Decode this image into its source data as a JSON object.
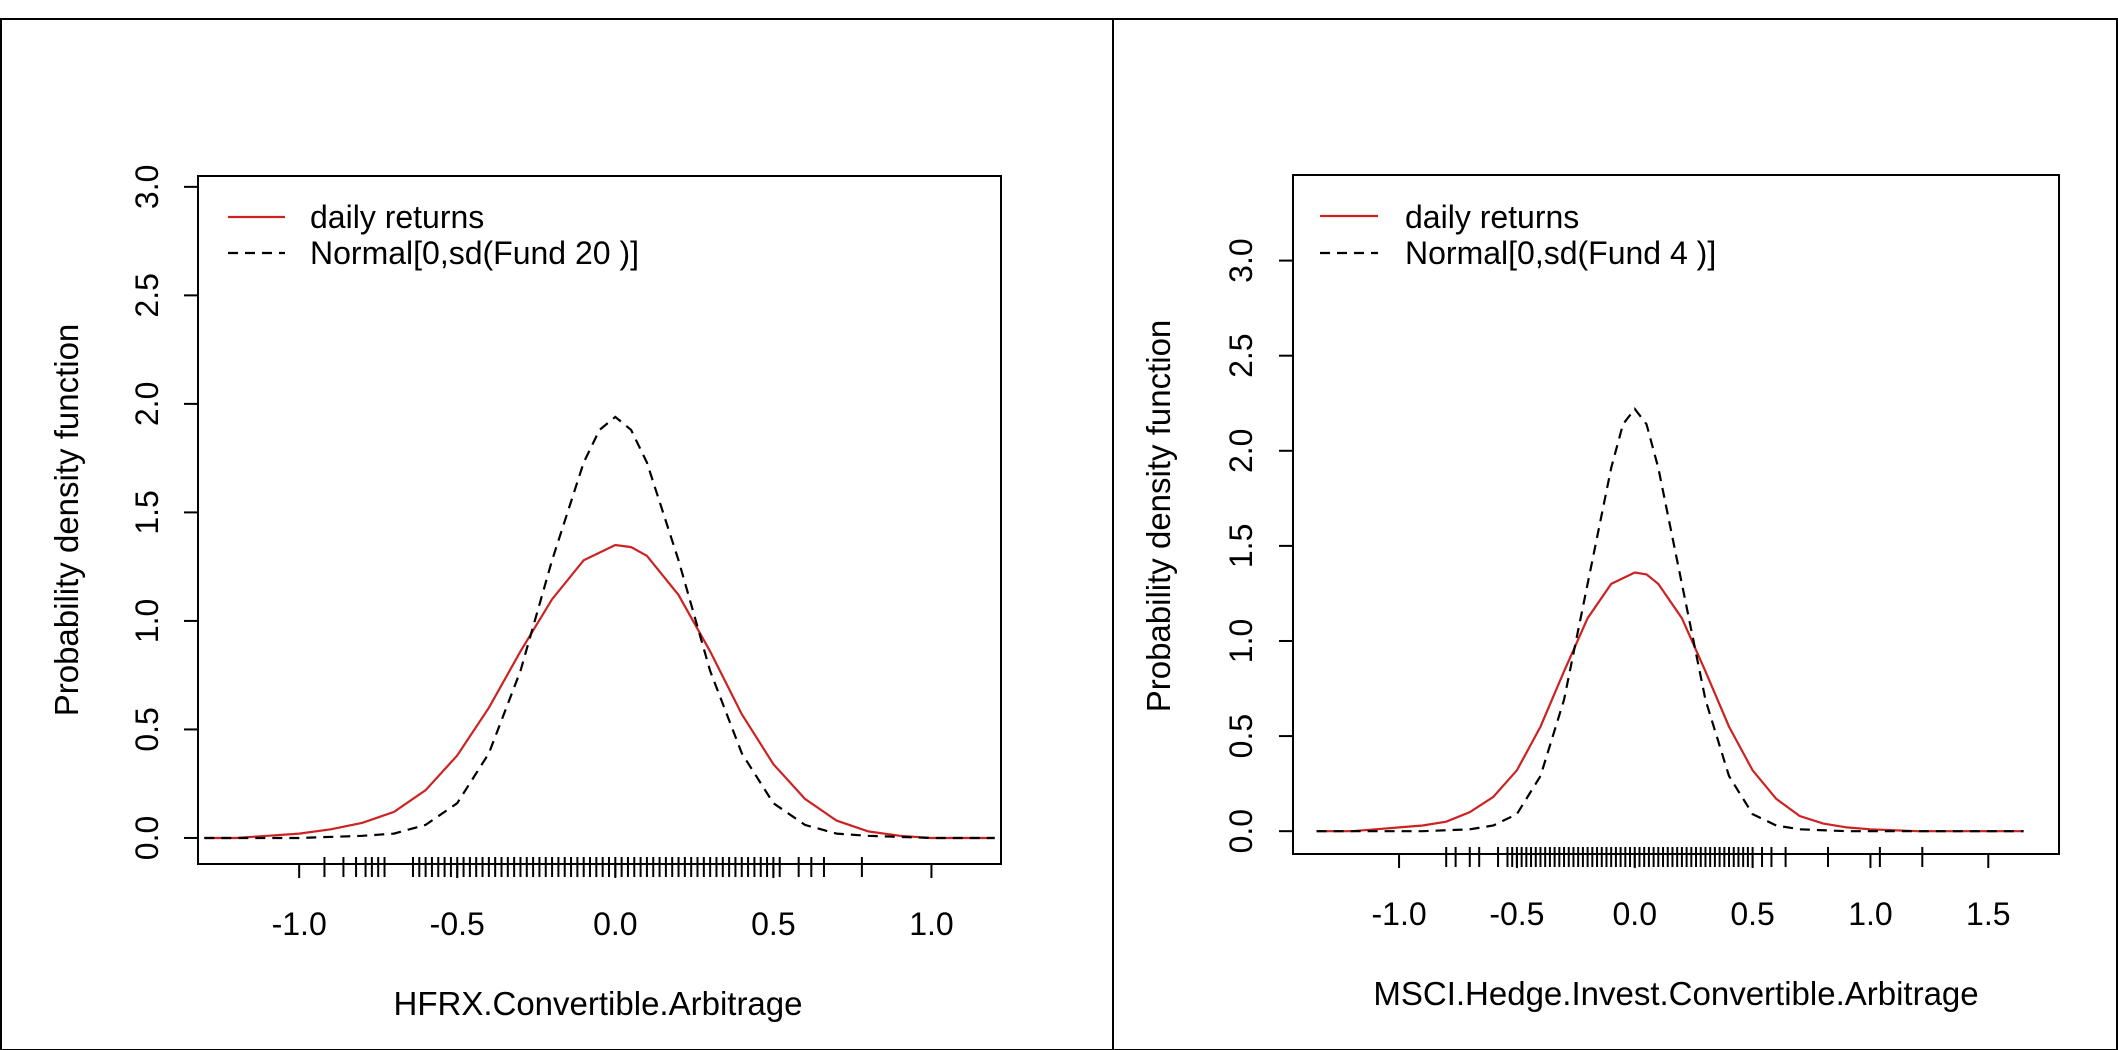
{
  "chart_data": [
    {
      "type": "line",
      "title": "",
      "xlabel": "HFRX.Convertible.Arbitrage",
      "ylabel": "Probability density function",
      "xlim": [
        -1.32,
        1.22
      ],
      "ylim": [
        -0.12,
        3.05
      ],
      "xticks": [
        -1.0,
        -0.5,
        0.0,
        0.5,
        1.0
      ],
      "xtick_labels": [
        "-1.0",
        "-0.5",
        "0.0",
        "0.5",
        "1.0"
      ],
      "yticks": [
        0.0,
        0.5,
        1.0,
        1.5,
        2.0,
        2.5,
        3.0
      ],
      "ytick_labels": [
        "0.0",
        "0.5",
        "1.0",
        "1.5",
        "2.0",
        "2.5",
        "3.0"
      ],
      "legend_position": "top-left",
      "series": [
        {
          "name": "daily returns",
          "style": "solid",
          "color": "#cc2222",
          "x": [
            -1.3,
            -1.2,
            -1.1,
            -1.0,
            -0.9,
            -0.8,
            -0.7,
            -0.6,
            -0.5,
            -0.4,
            -0.3,
            -0.2,
            -0.1,
            0.0,
            0.05,
            0.1,
            0.2,
            0.3,
            0.4,
            0.5,
            0.6,
            0.7,
            0.8,
            0.9,
            1.0,
            1.1,
            1.2
          ],
          "y": [
            0.0,
            0.0,
            0.01,
            0.02,
            0.04,
            0.07,
            0.12,
            0.22,
            0.38,
            0.6,
            0.86,
            1.1,
            1.28,
            1.35,
            1.34,
            1.3,
            1.12,
            0.86,
            0.57,
            0.34,
            0.18,
            0.08,
            0.03,
            0.01,
            0.0,
            0.0,
            0.0
          ]
        },
        {
          "name": "Normal[0,sd(Fund 20 )]",
          "style": "dashed",
          "color": "#000000",
          "x": [
            -1.3,
            -1.0,
            -0.8,
            -0.7,
            -0.6,
            -0.5,
            -0.4,
            -0.3,
            -0.2,
            -0.1,
            -0.05,
            0.0,
            0.05,
            0.1,
            0.2,
            0.3,
            0.4,
            0.5,
            0.6,
            0.7,
            0.8,
            1.0,
            1.2
          ],
          "y": [
            0.0,
            0.0,
            0.01,
            0.02,
            0.06,
            0.16,
            0.39,
            0.77,
            1.28,
            1.73,
            1.88,
            1.94,
            1.88,
            1.73,
            1.28,
            0.77,
            0.39,
            0.16,
            0.06,
            0.02,
            0.01,
            0.0,
            0.0
          ]
        }
      ],
      "rug": [
        -0.92,
        -0.86,
        -0.82,
        -0.79,
        -0.77,
        -0.75,
        -0.73,
        -0.64,
        -0.62,
        -0.6,
        -0.58,
        -0.56,
        -0.54,
        -0.52,
        -0.5,
        -0.48,
        -0.46,
        -0.44,
        -0.42,
        -0.4,
        -0.38,
        -0.36,
        -0.34,
        -0.32,
        -0.3,
        -0.28,
        -0.26,
        -0.24,
        -0.22,
        -0.2,
        -0.18,
        -0.16,
        -0.14,
        -0.12,
        -0.1,
        -0.08,
        -0.06,
        -0.04,
        -0.02,
        0.0,
        0.02,
        0.04,
        0.06,
        0.08,
        0.1,
        0.12,
        0.14,
        0.16,
        0.18,
        0.2,
        0.22,
        0.24,
        0.26,
        0.28,
        0.3,
        0.32,
        0.34,
        0.36,
        0.38,
        0.4,
        0.42,
        0.44,
        0.46,
        0.48,
        0.5,
        0.52,
        0.58,
        0.62,
        0.66,
        0.78
      ]
    },
    {
      "type": "line",
      "title": "",
      "xlabel": "MSCI.Hedge.Invest.Convertible.Arbitrage",
      "ylabel": "Probability density function",
      "xlim": [
        -1.45,
        1.8
      ],
      "ylim": [
        -0.12,
        3.45
      ],
      "xticks": [
        -1.0,
        -0.5,
        0.0,
        0.5,
        1.0,
        1.5
      ],
      "xtick_labels": [
        "-1.0",
        "-0.5",
        "0.0",
        "0.5",
        "1.0",
        "1.5"
      ],
      "yticks": [
        0.0,
        0.5,
        1.0,
        1.5,
        2.0,
        2.5,
        3.0
      ],
      "ytick_labels": [
        "0.0",
        "0.5",
        "1.0",
        "1.5",
        "2.0",
        "2.5",
        "3.0"
      ],
      "legend_position": "top-left",
      "series": [
        {
          "name": "daily returns",
          "style": "solid",
          "color": "#cc2222",
          "x": [
            -1.35,
            -1.2,
            -1.1,
            -1.0,
            -0.9,
            -0.8,
            -0.7,
            -0.6,
            -0.5,
            -0.4,
            -0.3,
            -0.2,
            -0.1,
            0.0,
            0.05,
            0.1,
            0.2,
            0.3,
            0.4,
            0.5,
            0.6,
            0.7,
            0.8,
            0.9,
            1.0,
            1.2,
            1.4,
            1.65
          ],
          "y": [
            0.0,
            0.0,
            0.01,
            0.02,
            0.03,
            0.05,
            0.1,
            0.18,
            0.32,
            0.55,
            0.84,
            1.12,
            1.3,
            1.36,
            1.35,
            1.3,
            1.12,
            0.84,
            0.55,
            0.32,
            0.17,
            0.08,
            0.04,
            0.02,
            0.01,
            0.0,
            0.0,
            0.0
          ]
        },
        {
          "name": "Normal[0,sd(Fund 4 )]",
          "style": "dashed",
          "color": "#000000",
          "x": [
            -1.35,
            -0.9,
            -0.7,
            -0.6,
            -0.5,
            -0.4,
            -0.3,
            -0.2,
            -0.1,
            -0.05,
            0.0,
            0.05,
            0.1,
            0.2,
            0.3,
            0.4,
            0.5,
            0.6,
            0.7,
            0.9,
            1.2,
            1.65
          ],
          "y": [
            0.0,
            0.0,
            0.01,
            0.03,
            0.09,
            0.29,
            0.69,
            1.3,
            1.91,
            2.14,
            2.22,
            2.14,
            1.91,
            1.3,
            0.69,
            0.29,
            0.09,
            0.03,
            0.01,
            0.0,
            0.0,
            0.0
          ]
        }
      ],
      "rug": [
        -0.8,
        -0.76,
        -0.7,
        -0.66,
        -0.58,
        -0.54,
        -0.52,
        -0.5,
        -0.48,
        -0.46,
        -0.44,
        -0.42,
        -0.4,
        -0.38,
        -0.36,
        -0.34,
        -0.32,
        -0.3,
        -0.28,
        -0.26,
        -0.24,
        -0.22,
        -0.2,
        -0.18,
        -0.16,
        -0.14,
        -0.12,
        -0.1,
        -0.08,
        -0.06,
        -0.04,
        -0.02,
        0.0,
        0.02,
        0.04,
        0.06,
        0.08,
        0.1,
        0.12,
        0.14,
        0.16,
        0.18,
        0.2,
        0.22,
        0.24,
        0.26,
        0.28,
        0.3,
        0.32,
        0.34,
        0.36,
        0.38,
        0.4,
        0.42,
        0.44,
        0.46,
        0.48,
        0.5,
        0.54,
        0.58,
        0.64,
        0.82,
        1.04,
        1.22
      ]
    }
  ]
}
